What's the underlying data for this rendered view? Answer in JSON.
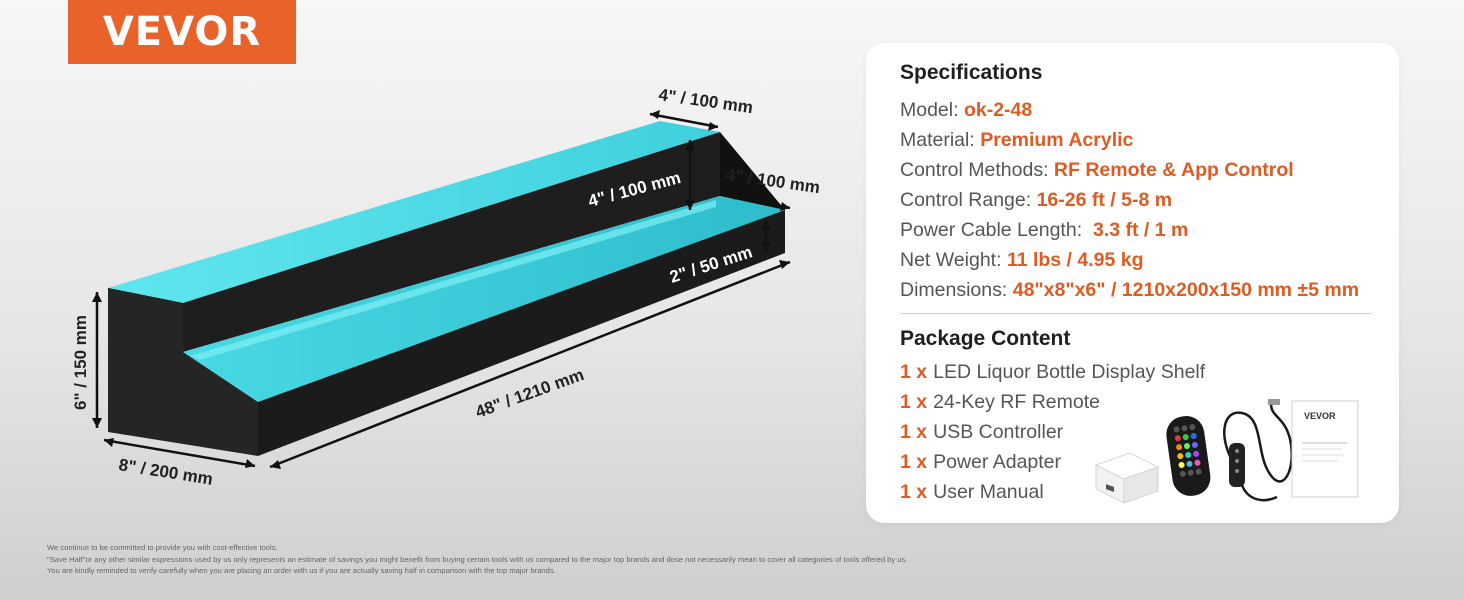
{
  "brand": {
    "logo_text": "VEVOR",
    "color": "#e9622a"
  },
  "dimension_labels": {
    "top_depth": "4\" / 100 mm",
    "upper_height": "4\" / 100 mm",
    "step_depth": "4\" / 100 mm",
    "front_height": "2\" / 50 mm",
    "length": "48\" / 1210 mm",
    "total_height": "6\" / 150 mm",
    "total_depth": "8\" / 200 mm"
  },
  "specifications": {
    "title": "Specifications",
    "rows": [
      {
        "label": "Model: ",
        "value": "ok-2-48"
      },
      {
        "label": "Material: ",
        "value": "Premium Acrylic"
      },
      {
        "label": "Control Methods: ",
        "value": "RF Remote & App Control"
      },
      {
        "label": "Control Range: ",
        "value": "16-26 ft / 5-8 m"
      },
      {
        "label": "Power Cable Length:  ",
        "value": "3.3 ft / 1 m"
      },
      {
        "label": "Net Weight: ",
        "value": "11 lbs / 4.95 kg"
      },
      {
        "label": "Dimensions: ",
        "value": "48\"x8\"x6\" / 1210x200x150 mm ±5 mm"
      }
    ]
  },
  "package": {
    "title": "Package Content",
    "items": [
      {
        "qty": "1 x",
        "name": "LED Liquor Bottle Display Shelf"
      },
      {
        "qty": "1 x",
        "name": "24-Key RF Remote"
      },
      {
        "qty": "1 x",
        "name": "USB Controller"
      },
      {
        "qty": "1 x",
        "name": "Power Adapter"
      },
      {
        "qty": "1 x",
        "name": "User Manual"
      }
    ],
    "manual_brand": "VEVOR"
  },
  "footnote": [
    "We continue to be committed to provide you with cost-effective tools.",
    "\"Save Half\"or any other similar expressions used by us only represents an estimate of savings you might benefit from buying certain tools with us compared to the major top brands and dose not necessarily mean to cover all categories of tools offered by us.",
    "You are kindly reminded to verify carefully when you are placing an order with us if you are actually saving half in comparison with the top major brands."
  ],
  "colors": {
    "accent": "#e05b22",
    "led_glow": "#5ee0e8",
    "shelf_body": "#1c1c1c"
  }
}
